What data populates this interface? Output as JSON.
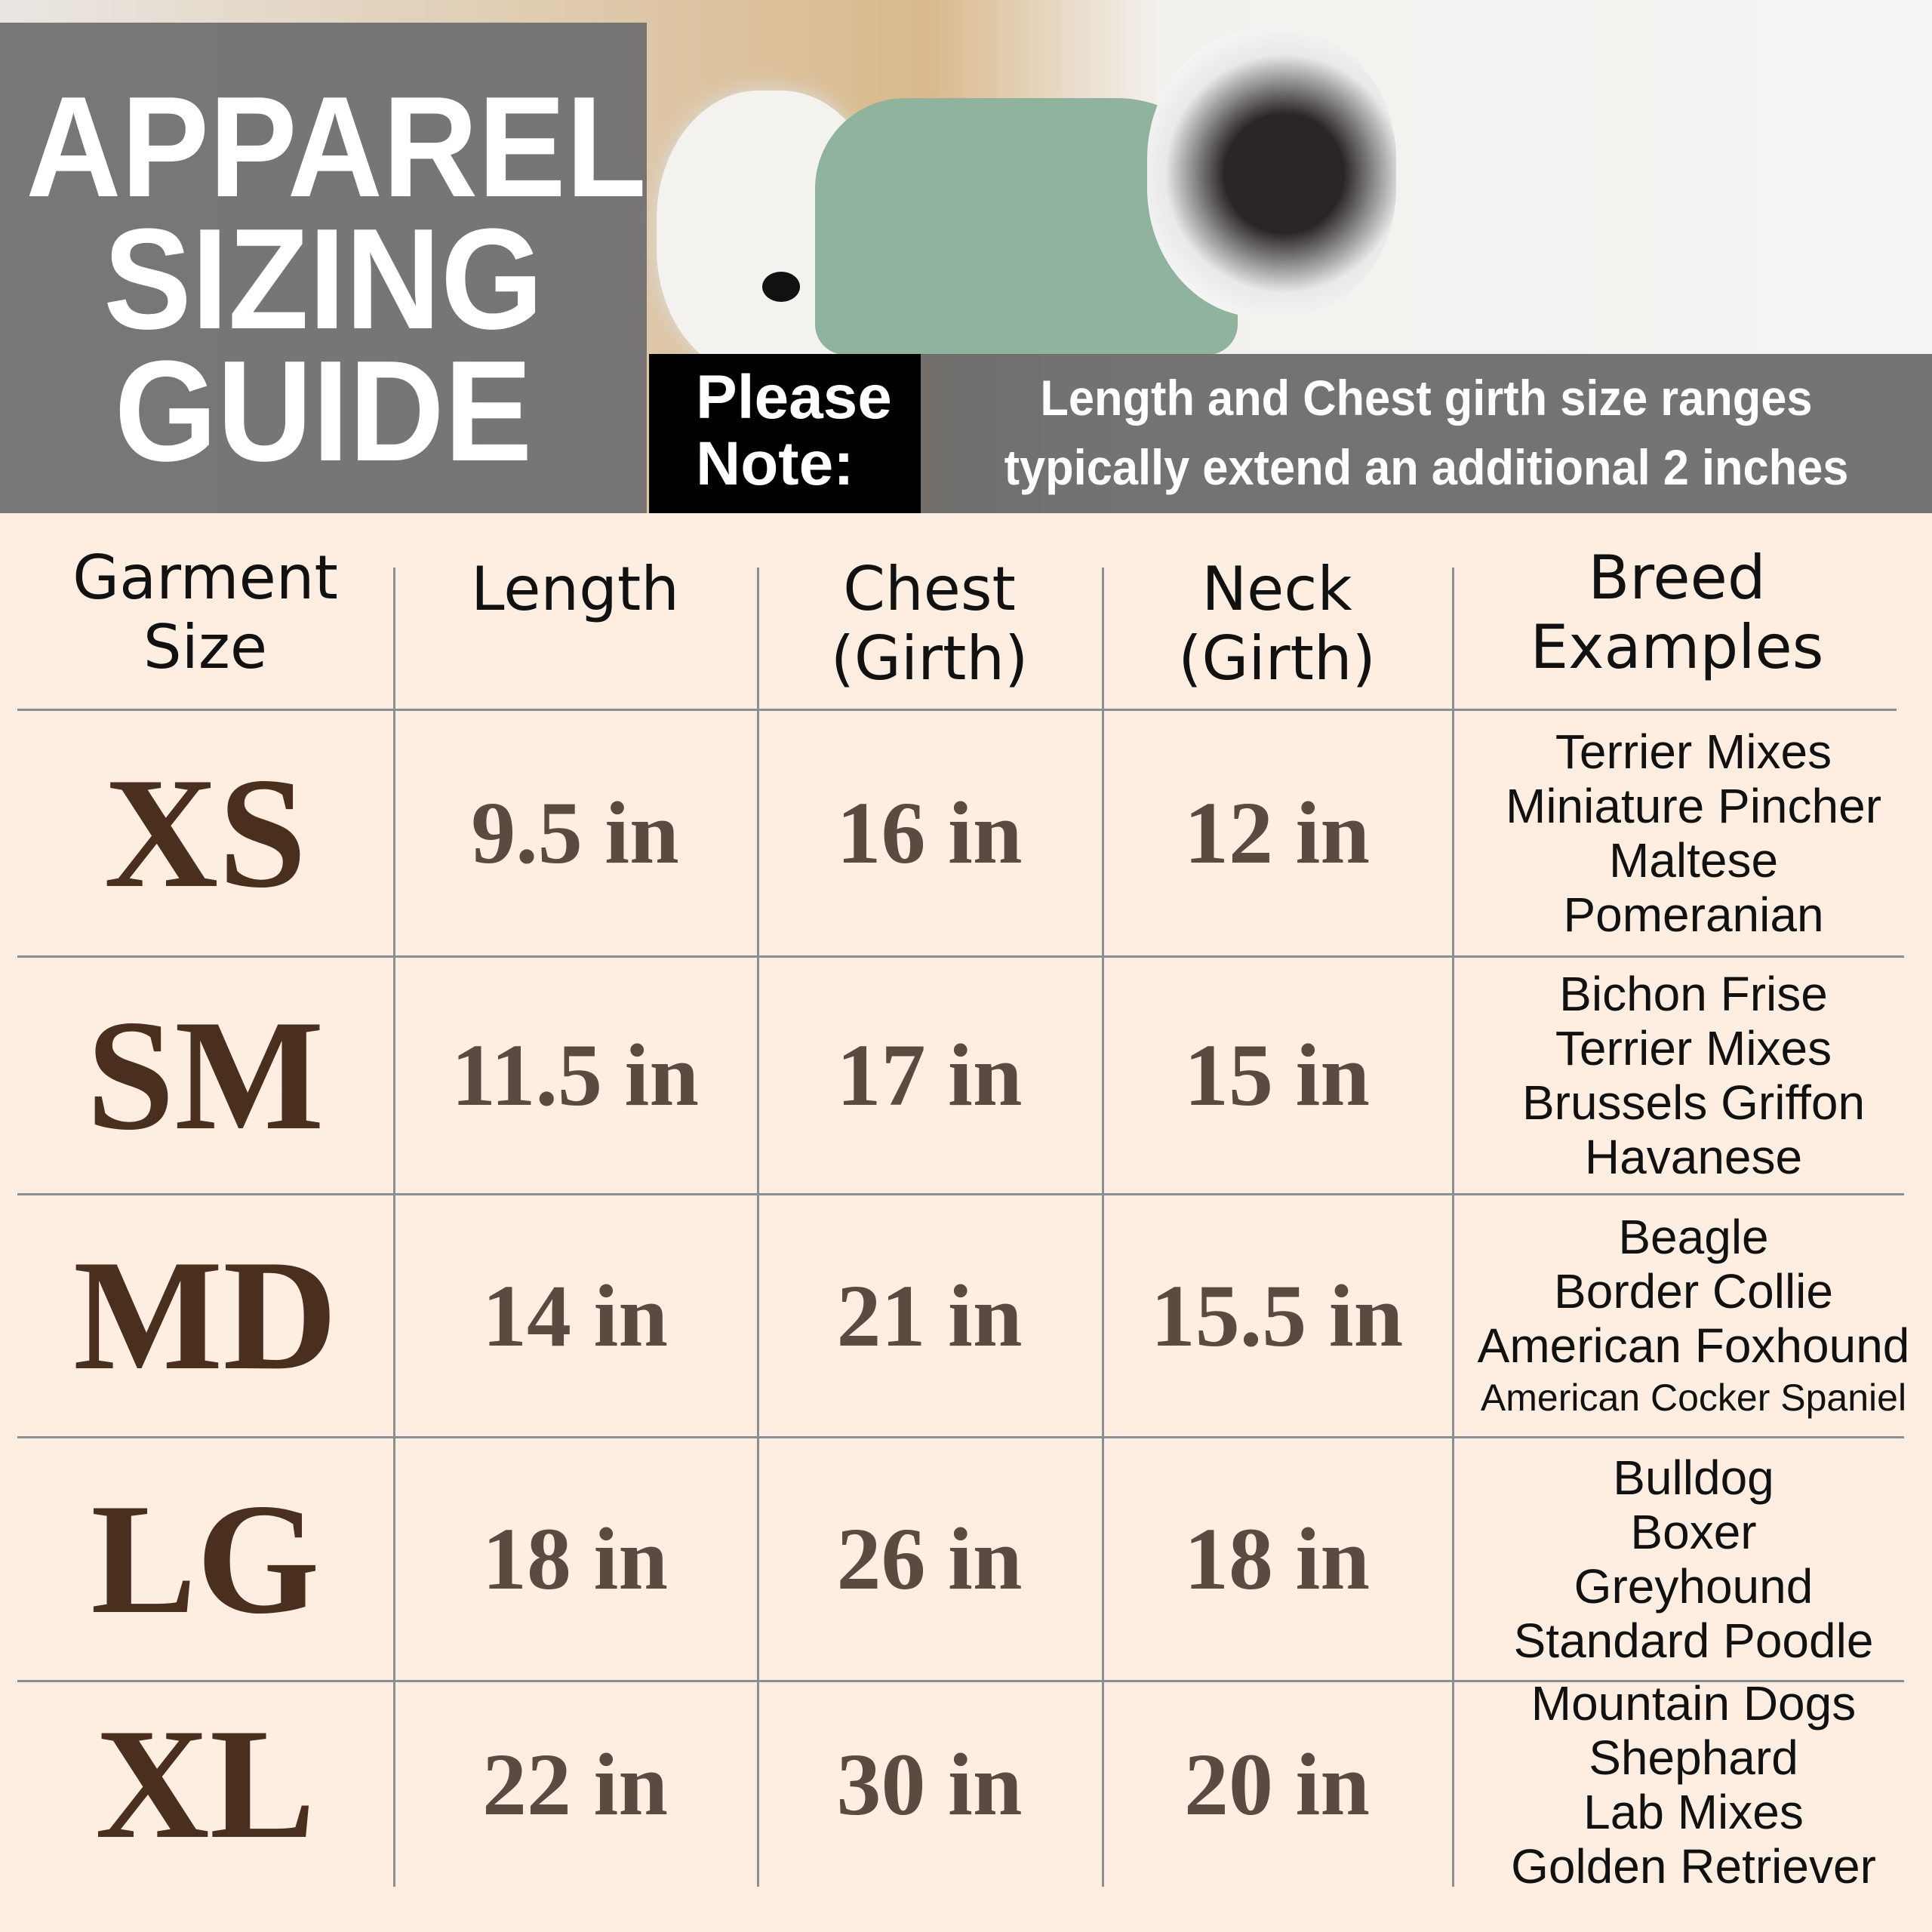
{
  "header": {
    "title_lines": [
      "APPAREL",
      "SIZING",
      "GUIDE"
    ],
    "note_label_lines": [
      "Please",
      "Note:"
    ],
    "note_text_lines": [
      "Length and Chest girth size ranges",
      "typically extend an additional 2 inches"
    ]
  },
  "table": {
    "columns": [
      {
        "lines": [
          "Garment",
          "Size"
        ]
      },
      {
        "lines": [
          "Length"
        ]
      },
      {
        "lines": [
          "Chest",
          "(Girth)"
        ]
      },
      {
        "lines": [
          "Neck",
          "(Girth)"
        ]
      },
      {
        "lines": [
          "Breed",
          "Examples"
        ]
      }
    ],
    "rows": [
      {
        "size": "XS",
        "length": "9.5 in",
        "chest": "16 in",
        "neck": "12 in",
        "breeds": [
          "Terrier Mixes",
          "Miniature Pincher",
          "Maltese",
          "Pomeranian"
        ]
      },
      {
        "size": "SM",
        "length": "11.5 in",
        "chest": "17 in",
        "neck": "15 in",
        "breeds": [
          "Bichon Frise",
          "Terrier Mixes",
          "Brussels Griffon",
          "Havanese"
        ]
      },
      {
        "size": "MD",
        "length": "14 in",
        "chest": "21 in",
        "neck": "15.5 in",
        "breeds": [
          "Beagle",
          "Border Collie",
          "American Foxhound",
          "American Cocker Spaniel"
        ]
      },
      {
        "size": "LG",
        "length": "18 in",
        "chest": "26 in",
        "neck": "18 in",
        "breeds": [
          "Bulldog",
          "Boxer",
          "Greyhound",
          "Standard Poodle"
        ]
      },
      {
        "size": "XL",
        "length": "22 in",
        "chest": "30 in",
        "neck": "20 in",
        "breeds": [
          "Mountain Dogs",
          "Shephard",
          "Lab Mixes",
          "Golden Retriever"
        ]
      }
    ]
  },
  "colors": {
    "background": "#fdeee1",
    "size_text": "#4a2f1f",
    "value_text": "#5a4a42",
    "rule": "#8a8f96"
  }
}
